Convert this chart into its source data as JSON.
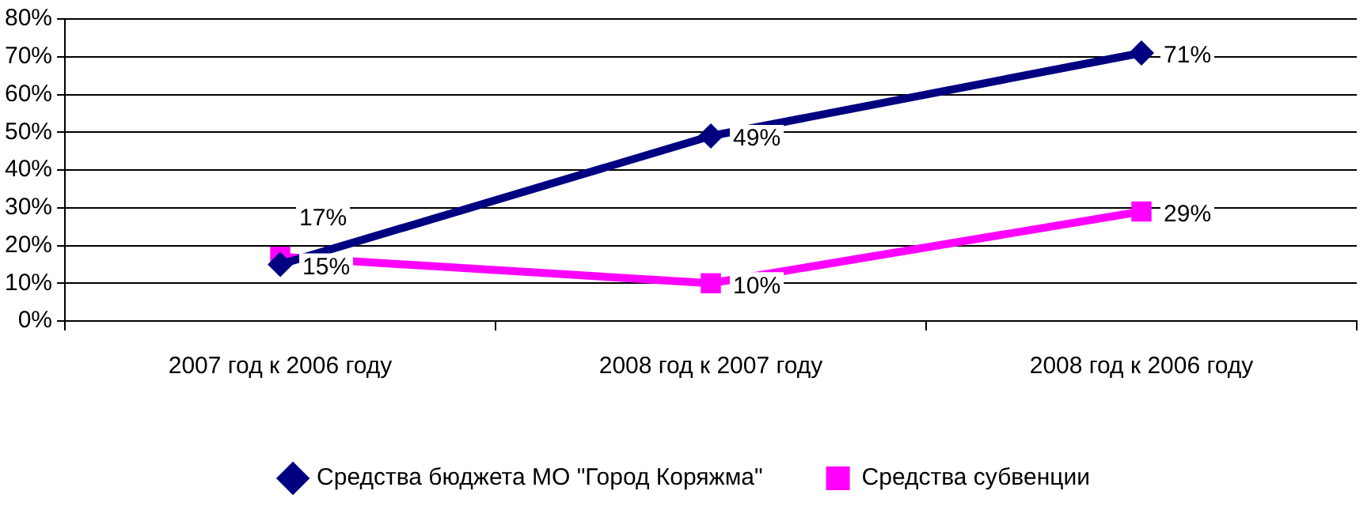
{
  "chart_data": {
    "type": "line",
    "categories": [
      "2007 год к 2006 году",
      "2008 год к 2007 году",
      "2008 год к 2006 году"
    ],
    "series": [
      {
        "name": "Средства бюджета МО \"Город Коряжма\"",
        "color": "#000080",
        "marker": "diamond",
        "values": [
          15,
          49,
          71
        ],
        "value_labels": [
          "15%",
          "49%",
          "71%"
        ]
      },
      {
        "name": "Средства субвенции",
        "color": "#ff00ff",
        "marker": "square",
        "values": [
          17,
          10,
          29
        ],
        "value_labels": [
          "17%",
          "10%",
          "29%"
        ]
      }
    ],
    "ylim": [
      0,
      80
    ],
    "yticks": [
      {
        "value": 0,
        "label": "0%"
      },
      {
        "value": 10,
        "label": "10%"
      },
      {
        "value": 20,
        "label": "20%"
      },
      {
        "value": 30,
        "label": "30%"
      },
      {
        "value": 40,
        "label": "40%"
      },
      {
        "value": 50,
        "label": "50%"
      },
      {
        "value": 60,
        "label": "60%"
      },
      {
        "value": 70,
        "label": "70%"
      },
      {
        "value": 80,
        "label": "80%"
      }
    ],
    "grid": "y",
    "legend": "bottom",
    "line_style": "solid"
  }
}
